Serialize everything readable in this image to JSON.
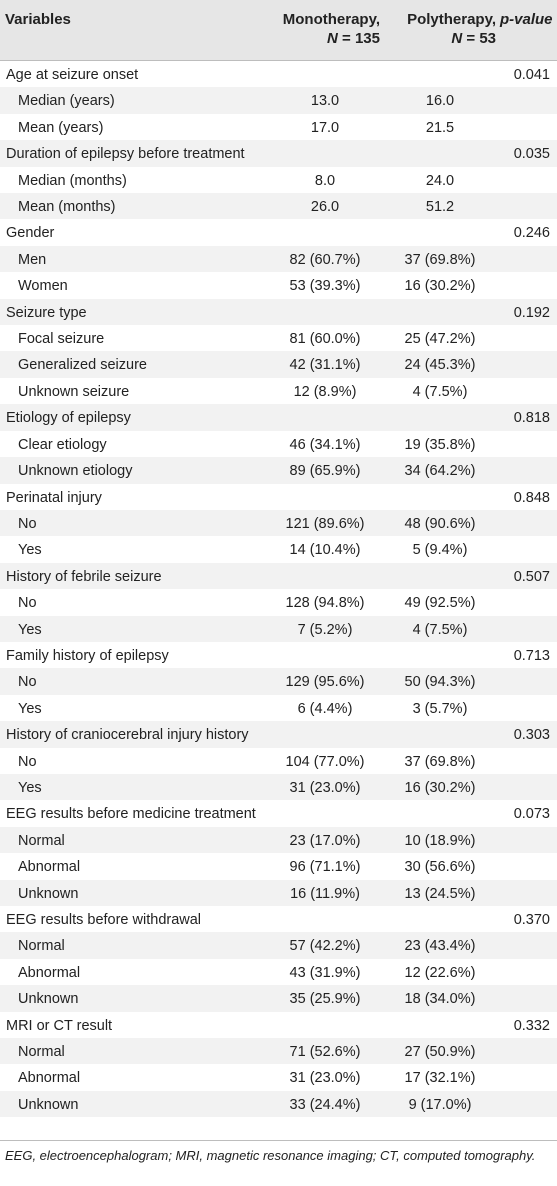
{
  "header": {
    "variables": "Variables",
    "mono_label": "Monotherapy,",
    "mono_n": "N = 135",
    "poly_label": "Polytherapy,",
    "poly_n": "N = 53",
    "p_label": "p-value"
  },
  "rows": [
    {
      "label": "Age at seizure onset",
      "mono": "",
      "poly": "",
      "p": "0.041",
      "sub": false
    },
    {
      "label": "Median (years)",
      "mono": "13.0",
      "poly": "16.0",
      "p": "",
      "sub": true
    },
    {
      "label": "Mean (years)",
      "mono": "17.0",
      "poly": "21.5",
      "p": "",
      "sub": true
    },
    {
      "label": "Duration of epilepsy before treatment",
      "mono": "",
      "poly": "",
      "p": "0.035",
      "sub": false
    },
    {
      "label": "Median (months)",
      "mono": "8.0",
      "poly": "24.0",
      "p": "",
      "sub": true
    },
    {
      "label": "Mean (months)",
      "mono": "26.0",
      "poly": "51.2",
      "p": "",
      "sub": true
    },
    {
      "label": "Gender",
      "mono": "",
      "poly": "",
      "p": "0.246",
      "sub": false
    },
    {
      "label": "Men",
      "mono": "82 (60.7%)",
      "poly": "37 (69.8%)",
      "p": "",
      "sub": true
    },
    {
      "label": "Women",
      "mono": "53 (39.3%)",
      "poly": "16 (30.2%)",
      "p": "",
      "sub": true
    },
    {
      "label": "Seizure type",
      "mono": "",
      "poly": "",
      "p": "0.192",
      "sub": false
    },
    {
      "label": "Focal seizure",
      "mono": "81 (60.0%)",
      "poly": "25 (47.2%)",
      "p": "",
      "sub": true
    },
    {
      "label": "Generalized seizure",
      "mono": "42 (31.1%)",
      "poly": "24 (45.3%)",
      "p": "",
      "sub": true
    },
    {
      "label": "Unknown seizure",
      "mono": "12 (8.9%)",
      "poly": "4 (7.5%)",
      "p": "",
      "sub": true
    },
    {
      "label": "Etiology of epilepsy",
      "mono": "",
      "poly": "",
      "p": "0.818",
      "sub": false
    },
    {
      "label": "Clear etiology",
      "mono": "46 (34.1%)",
      "poly": "19 (35.8%)",
      "p": "",
      "sub": true
    },
    {
      "label": "Unknown etiology",
      "mono": "89 (65.9%)",
      "poly": "34 (64.2%)",
      "p": "",
      "sub": true
    },
    {
      "label": "Perinatal injury",
      "mono": "",
      "poly": "",
      "p": "0.848",
      "sub": false
    },
    {
      "label": "No",
      "mono": "121 (89.6%)",
      "poly": "48 (90.6%)",
      "p": "",
      "sub": true
    },
    {
      "label": "Yes",
      "mono": "14 (10.4%)",
      "poly": "5 (9.4%)",
      "p": "",
      "sub": true
    },
    {
      "label": "History of febrile seizure",
      "mono": "",
      "poly": "",
      "p": "0.507",
      "sub": false
    },
    {
      "label": "No",
      "mono": "128 (94.8%)",
      "poly": "49 (92.5%)",
      "p": "",
      "sub": true
    },
    {
      "label": "Yes",
      "mono": "7 (5.2%)",
      "poly": "4 (7.5%)",
      "p": "",
      "sub": true
    },
    {
      "label": "Family history of epilepsy",
      "mono": "",
      "poly": "",
      "p": "0.713",
      "sub": false
    },
    {
      "label": "No",
      "mono": "129 (95.6%)",
      "poly": "50 (94.3%)",
      "p": "",
      "sub": true
    },
    {
      "label": "Yes",
      "mono": "6 (4.4%)",
      "poly": "3 (5.7%)",
      "p": "",
      "sub": true
    },
    {
      "label": "History of craniocerebral injury history",
      "mono": "",
      "poly": "",
      "p": "0.303",
      "sub": false
    },
    {
      "label": "No",
      "mono": "104 (77.0%)",
      "poly": "37 (69.8%)",
      "p": "",
      "sub": true
    },
    {
      "label": "Yes",
      "mono": "31 (23.0%)",
      "poly": "16 (30.2%)",
      "p": "",
      "sub": true
    },
    {
      "label": "EEG results before medicine treatment",
      "mono": "",
      "poly": "",
      "p": "0.073",
      "sub": false
    },
    {
      "label": "Normal",
      "mono": "23 (17.0%)",
      "poly": "10 (18.9%)",
      "p": "",
      "sub": true
    },
    {
      "label": "Abnormal",
      "mono": "96 (71.1%)",
      "poly": "30 (56.6%)",
      "p": "",
      "sub": true
    },
    {
      "label": "Unknown",
      "mono": "16 (11.9%)",
      "poly": "13 (24.5%)",
      "p": "",
      "sub": true
    },
    {
      "label": "EEG results before withdrawal",
      "mono": "",
      "poly": "",
      "p": "0.370",
      "sub": false
    },
    {
      "label": "Normal",
      "mono": "57 (42.2%)",
      "poly": "23 (43.4%)",
      "p": "",
      "sub": true
    },
    {
      "label": "Abnormal",
      "mono": "43 (31.9%)",
      "poly": "12 (22.6%)",
      "p": "",
      "sub": true
    },
    {
      "label": "Unknown",
      "mono": "35 (25.9%)",
      "poly": "18 (34.0%)",
      "p": "",
      "sub": true
    },
    {
      "label": "MRI or CT result",
      "mono": "",
      "poly": "",
      "p": "0.332",
      "sub": false
    },
    {
      "label": "Normal",
      "mono": "71 (52.6%)",
      "poly": "27 (50.9%)",
      "p": "",
      "sub": true
    },
    {
      "label": "Abnormal",
      "mono": "31 (23.0%)",
      "poly": "17 (32.1%)",
      "p": "",
      "sub": true
    },
    {
      "label": "Unknown",
      "mono": "33 (24.4%)",
      "poly": "9 (17.0%)",
      "p": "",
      "sub": true
    }
  ],
  "footnote": "EEG, electroencephalogram; MRI, magnetic resonance imaging; CT, computed tomography."
}
